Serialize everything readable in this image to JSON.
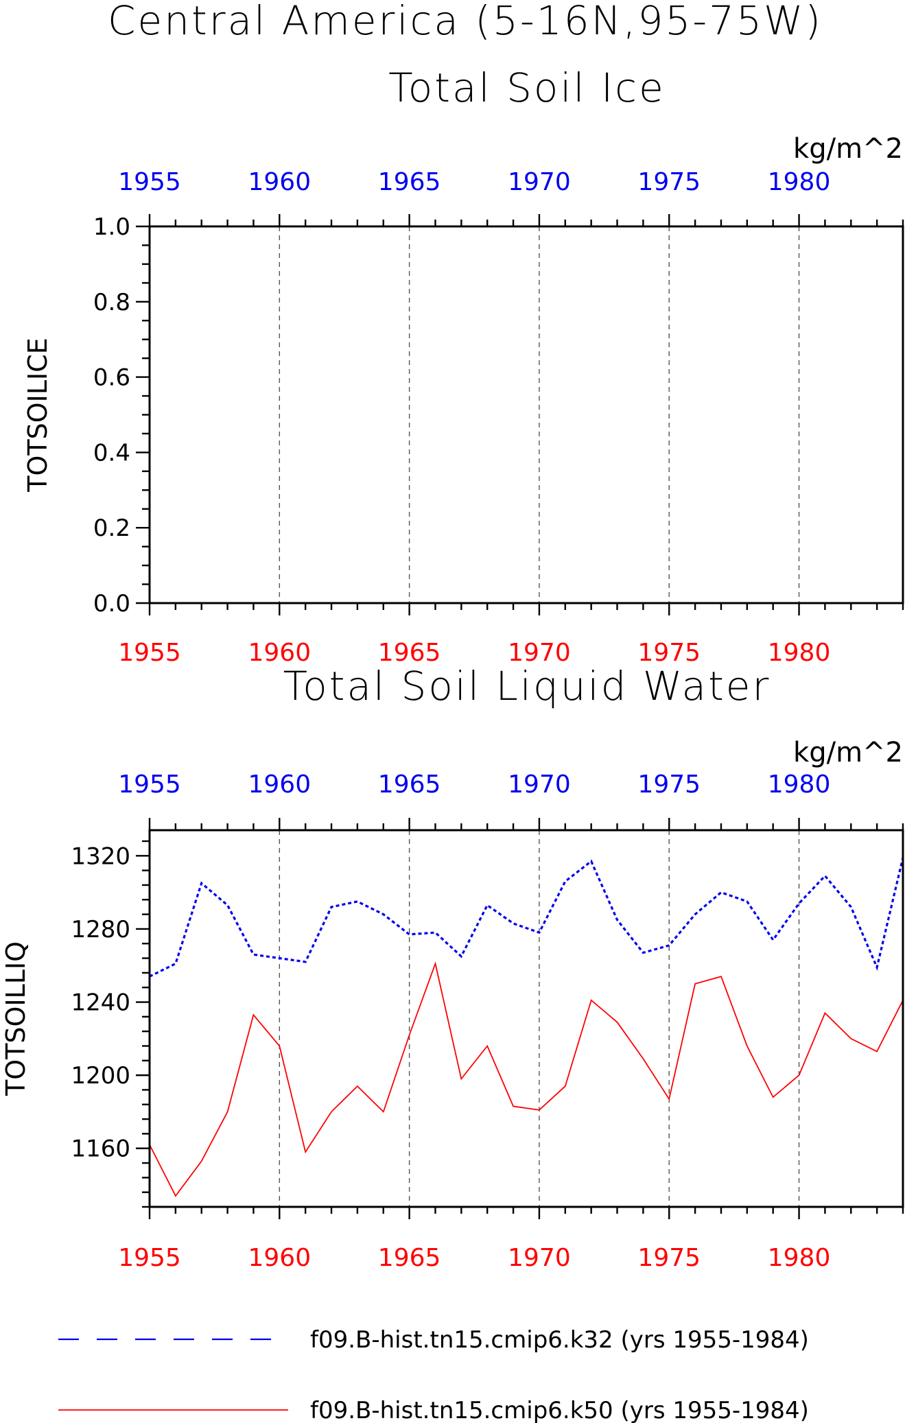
{
  "figure": {
    "title": "Central America (5-16N,95-75W)"
  },
  "legend": [
    {
      "label": "f09.B-hist.tn15.cmip6.k32 (yrs 1955-1984)",
      "color": "#0000ee",
      "style": "dashed"
    },
    {
      "label": "f09.B-hist.tn15.cmip6.k50 (yrs 1955-1984)",
      "color": "#ff0000",
      "style": "solid"
    }
  ],
  "chart_data": [
    {
      "type": "line",
      "title": "Total Soil Ice",
      "units": "kg/m^2",
      "ylabel": "TOTSOILICE",
      "xlim": [
        1955,
        1984
      ],
      "ylim": [
        0.0,
        1.0
      ],
      "x_ticks": [
        "1955",
        "1960",
        "1965",
        "1970",
        "1975",
        "1980"
      ],
      "y_ticks": [
        "0.0",
        "0.2",
        "0.4",
        "0.6",
        "0.8",
        "1.0"
      ],
      "x_minor_step": 1,
      "y_minor_step": 0.05,
      "grid": "vertical dashed at major x ticks",
      "series": []
    },
    {
      "type": "line",
      "title": "Total Soil Liquid Water",
      "units": "kg/m^2",
      "ylabel": "TOTSOILLIQ",
      "xlim": [
        1955,
        1984
      ],
      "ylim": [
        1128,
        1334
      ],
      "x_ticks": [
        "1955",
        "1960",
        "1965",
        "1970",
        "1975",
        "1980"
      ],
      "y_ticks": [
        "1160",
        "1200",
        "1240",
        "1280",
        "1320"
      ],
      "x_minor_step": 1,
      "y_minor_step": 8,
      "grid": "vertical dashed at major x ticks",
      "x": [
        1955,
        1956,
        1957,
        1958,
        1959,
        1960,
        1961,
        1962,
        1963,
        1964,
        1965,
        1966,
        1967,
        1968,
        1969,
        1970,
        1971,
        1972,
        1973,
        1974,
        1975,
        1976,
        1977,
        1978,
        1979,
        1980,
        1981,
        1982,
        1983,
        1984
      ],
      "series": [
        {
          "name": "f09.B-hist.tn15.cmip6.k32",
          "color": "#0000ee",
          "style": "dashed",
          "values": [
            1254,
            1261,
            1305,
            1293,
            1266,
            1264,
            1262,
            1292,
            1295,
            1288,
            1277,
            1278,
            1265,
            1293,
            1283,
            1278,
            1306,
            1317,
            1285,
            1267,
            1271,
            1288,
            1300,
            1295,
            1274,
            1294,
            1309,
            1292,
            1259,
            1319
          ]
        },
        {
          "name": "f09.B-hist.tn15.cmip6.k50",
          "color": "#ff0000",
          "style": "solid",
          "values": [
            1162,
            1134,
            1153,
            1180,
            1233,
            1216,
            1158,
            1180,
            1194,
            1180,
            1222,
            1261,
            1198,
            1216,
            1183,
            1181,
            1194,
            1241,
            1229,
            1209,
            1187,
            1250,
            1254,
            1216,
            1188,
            1200,
            1234,
            1220,
            1213,
            1241
          ]
        }
      ]
    }
  ]
}
